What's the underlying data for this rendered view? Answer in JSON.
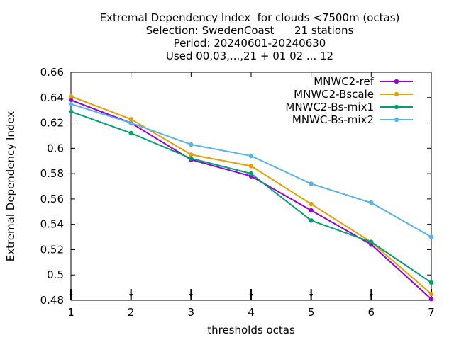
{
  "chart_data": {
    "type": "line",
    "title_lines": [
      "Extremal Dependency Index  for clouds <7500m (octas)",
      "Selection: SwedenCoast      21 stations",
      "Period: 20240601-20240630",
      "Used 00,03,...,21 + 01 02 ... 12"
    ],
    "xlabel": "thresholds octas",
    "ylabel": "Extremal Dependency Index",
    "x": [
      1,
      2,
      3,
      4,
      5,
      6,
      7
    ],
    "xlim": [
      1,
      7
    ],
    "ylim": [
      0.48,
      0.66
    ],
    "x_ticks": [
      1,
      2,
      3,
      4,
      5,
      6,
      7
    ],
    "y_ticks": [
      0.48,
      0.5,
      0.52,
      0.54,
      0.56,
      0.58,
      0.6,
      0.62,
      0.64,
      0.66
    ],
    "x_tick_labels": [
      "1",
      "2",
      "3",
      "4",
      "5",
      "6",
      "7"
    ],
    "y_tick_labels": [
      "0.48",
      "0.5",
      "0.52",
      "0.54",
      "0.56",
      "0.58",
      "0.6",
      "0.62",
      "0.64",
      "0.66"
    ],
    "grid": false,
    "legend_position": "top-right",
    "series": [
      {
        "name": "MNWC2-ref",
        "color": "#9400d3",
        "values": [
          0.638,
          0.62,
          0.591,
          0.578,
          0.551,
          0.524,
          0.481
        ]
      },
      {
        "name": "MNWC2-Bscale",
        "color": "#e69f00",
        "values": [
          0.641,
          0.623,
          0.595,
          0.586,
          0.556,
          0.526,
          0.485
        ]
      },
      {
        "name": "MNWC2-Bs-mix1",
        "color": "#009e73",
        "values": [
          0.629,
          0.612,
          0.592,
          0.58,
          0.543,
          0.526,
          0.494
        ]
      },
      {
        "name": "MNWC-Bs-mix2",
        "color": "#56b4e9",
        "values": [
          0.635,
          0.62,
          0.603,
          0.594,
          0.572,
          0.557,
          0.53
        ]
      }
    ]
  }
}
